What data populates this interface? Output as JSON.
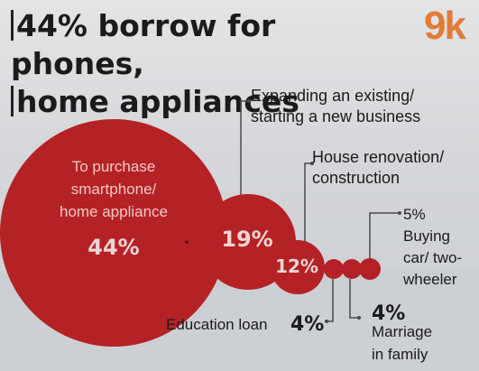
{
  "headline": {
    "line1": "44% borrow for phones,",
    "line2": "home appliances"
  },
  "logo": "9k",
  "colors": {
    "bubble": "#b42226",
    "bubble_text": "#f3c7c4",
    "value_text": "#f1d4d2",
    "leader": "#4a4a4a"
  },
  "chart_data": {
    "type": "bubble",
    "title": "44% borrow for phones, home appliances",
    "unit": "%",
    "items": [
      {
        "label": "To purchase smartphone/ home appliance",
        "value": 44,
        "value_text": "44%"
      },
      {
        "label": "Expanding an existing/ starting a new business",
        "value": 19,
        "value_text": "19%"
      },
      {
        "label": "House renovation/ construction",
        "value": 12,
        "value_text": "12%"
      },
      {
        "label": "Education loan",
        "value": 4,
        "value_text": "4%"
      },
      {
        "label": "Marriage in family",
        "value": 4,
        "value_text": "4%"
      },
      {
        "label": "Buying car/ two-wheeler",
        "value": 5,
        "value_text": "5%"
      }
    ]
  }
}
